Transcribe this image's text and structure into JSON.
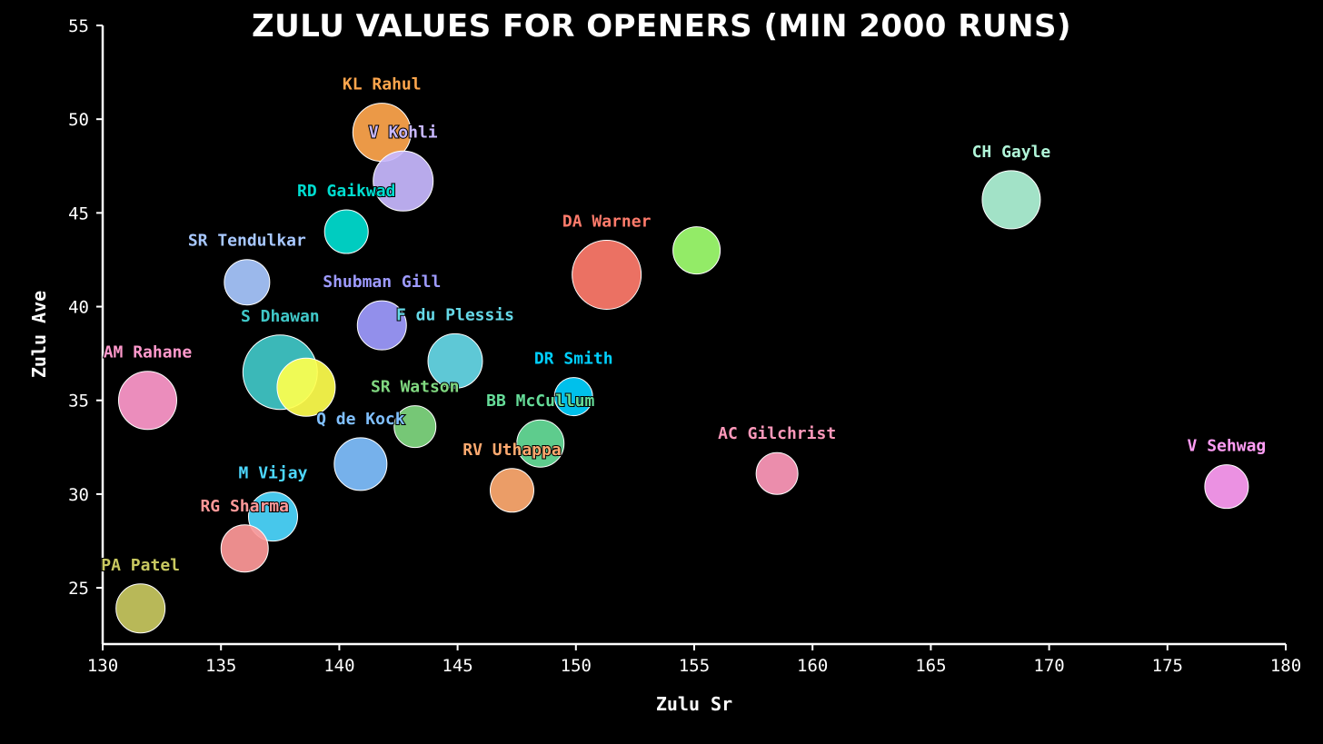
{
  "chart_data": {
    "type": "scatter",
    "title": "ZULU VALUES FOR OPENERS (MIN 2000 RUNS)",
    "xlabel": "Zulu Sr",
    "ylabel": "Zulu Ave",
    "xlim": [
      130,
      180
    ],
    "ylim": [
      22,
      55
    ],
    "xticks": [
      130,
      135,
      140,
      145,
      150,
      155,
      160,
      165,
      170,
      175,
      180
    ],
    "yticks": [
      25,
      30,
      35,
      40,
      45,
      50,
      55
    ],
    "grid": false,
    "points": [
      {
        "label": "KL Rahul",
        "x": 141.8,
        "y": 49.3,
        "color": "#ffa64d"
      },
      {
        "label": "V Kohli",
        "x": 142.7,
        "y": 46.7,
        "color": "#c8b8ff"
      },
      {
        "label": "RD Gaikwad",
        "x": 140.3,
        "y": 44.0,
        "color": "#00ddd0"
      },
      {
        "label": "SR Tendulkar",
        "x": 136.1,
        "y": 41.3,
        "color": "#a8c8ff"
      },
      {
        "label": "Shubman Gill",
        "x": 141.8,
        "y": 39.0,
        "color": "#9e9bff"
      },
      {
        "label": "F du Plessis",
        "x": 144.9,
        "y": 37.1,
        "color": "#66d9e8"
      },
      {
        "label": "S Dhawan",
        "x": 137.5,
        "y": 36.5,
        "color": "#40c8c8"
      },
      {
        "label": "",
        "x": 138.6,
        "y": 35.7,
        "color": "#ffff4d"
      },
      {
        "label": "AM Rahane",
        "x": 131.9,
        "y": 35.0,
        "color": "#ff99cc"
      },
      {
        "label": "SR Watson",
        "x": 143.2,
        "y": 33.6,
        "color": "#80d880"
      },
      {
        "label": "Q de Kock",
        "x": 140.9,
        "y": 31.6,
        "color": "#80c0ff"
      },
      {
        "label": "DR Smith",
        "x": 149.9,
        "y": 35.2,
        "color": "#00d0ff"
      },
      {
        "label": "BB McCullum",
        "x": 148.5,
        "y": 32.7,
        "color": "#66dd99"
      },
      {
        "label": "RV Uthappa",
        "x": 147.3,
        "y": 30.2,
        "color": "#ffaa70"
      },
      {
        "label": "DA Warner",
        "x": 151.3,
        "y": 41.7,
        "color": "#ff7b6b"
      },
      {
        "label": "",
        "x": 155.1,
        "y": 43.0,
        "color": "#a0ff70"
      },
      {
        "label": "CH Gayle",
        "x": 168.4,
        "y": 45.7,
        "color": "#b0f5d8"
      },
      {
        "label": "AC Gilchrist",
        "x": 158.5,
        "y": 31.1,
        "color": "#ff99bb"
      },
      {
        "label": "V Sehwag",
        "x": 177.5,
        "y": 30.4,
        "color": "#ff9df5"
      },
      {
        "label": "M Vijay",
        "x": 137.2,
        "y": 28.8,
        "color": "#4dd8ff"
      },
      {
        "label": "RG Sharma",
        "x": 136.0,
        "y": 27.1,
        "color": "#ff9999"
      },
      {
        "label": "PA Patel",
        "x": 131.6,
        "y": 23.9,
        "color": "#c8c860"
      }
    ]
  }
}
